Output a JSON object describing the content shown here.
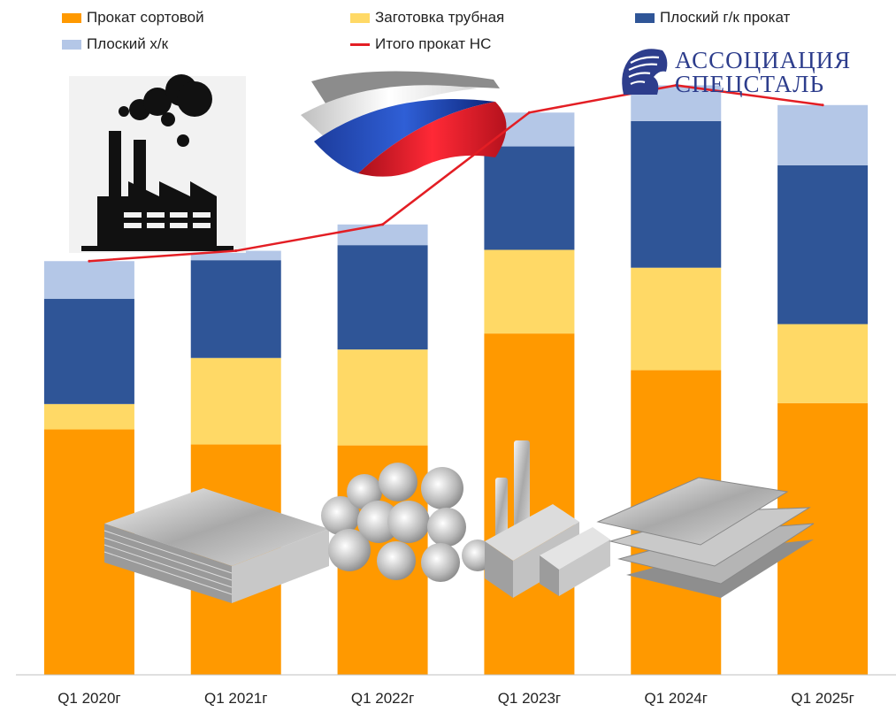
{
  "chart_data": {
    "type": "bar",
    "stacked": true,
    "categories": [
      "Q1 2020г",
      "Q1 2021г",
      "Q1 2022г",
      "Q1 2023г",
      "Q1 2024г",
      "Q1 2025г"
    ],
    "series": [
      {
        "name": "Прокат сортовой",
        "color": "#ff9900",
        "values": [
          261,
          245,
          244,
          363,
          324,
          289
        ]
      },
      {
        "name": "Заготовка трубная",
        "color": "#ffd966",
        "values": [
          27,
          92,
          102,
          89,
          109,
          84
        ]
      },
      {
        "name": "Плоский г/к прокат",
        "color": "#2f5597",
        "values": [
          112,
          104,
          111,
          110,
          156,
          169
        ]
      },
      {
        "name": "Плоский х/к",
        "color": "#b4c7e7",
        "values": [
          40,
          10,
          22,
          36,
          38,
          64
        ]
      }
    ],
    "line_series": {
      "name": "Итого прокат НС",
      "color": "#e31e24",
      "values": [
        440,
        451,
        479,
        598,
        627,
        606
      ]
    },
    "ylim": [
      0,
      650
    ],
    "grid": false,
    "legend_position": "top",
    "legend_order": [
      "Прокат сортовой",
      "Заготовка трубная",
      "Плоский г/к прокат",
      "Плоский х/к",
      "Итого прокат НС"
    ]
  },
  "logo": {
    "line1": "АССОЦИАЦИЯ",
    "line2": "СПЕЦСТАЛЬ",
    "color": "#2d3d8c"
  },
  "decorations": [
    "factory-icon",
    "russian-flag-ribbon",
    "steel-sheets-image",
    "steel-bars-image",
    "steel-billets-image",
    "steel-plates-image",
    "knight-helmet-icon"
  ]
}
